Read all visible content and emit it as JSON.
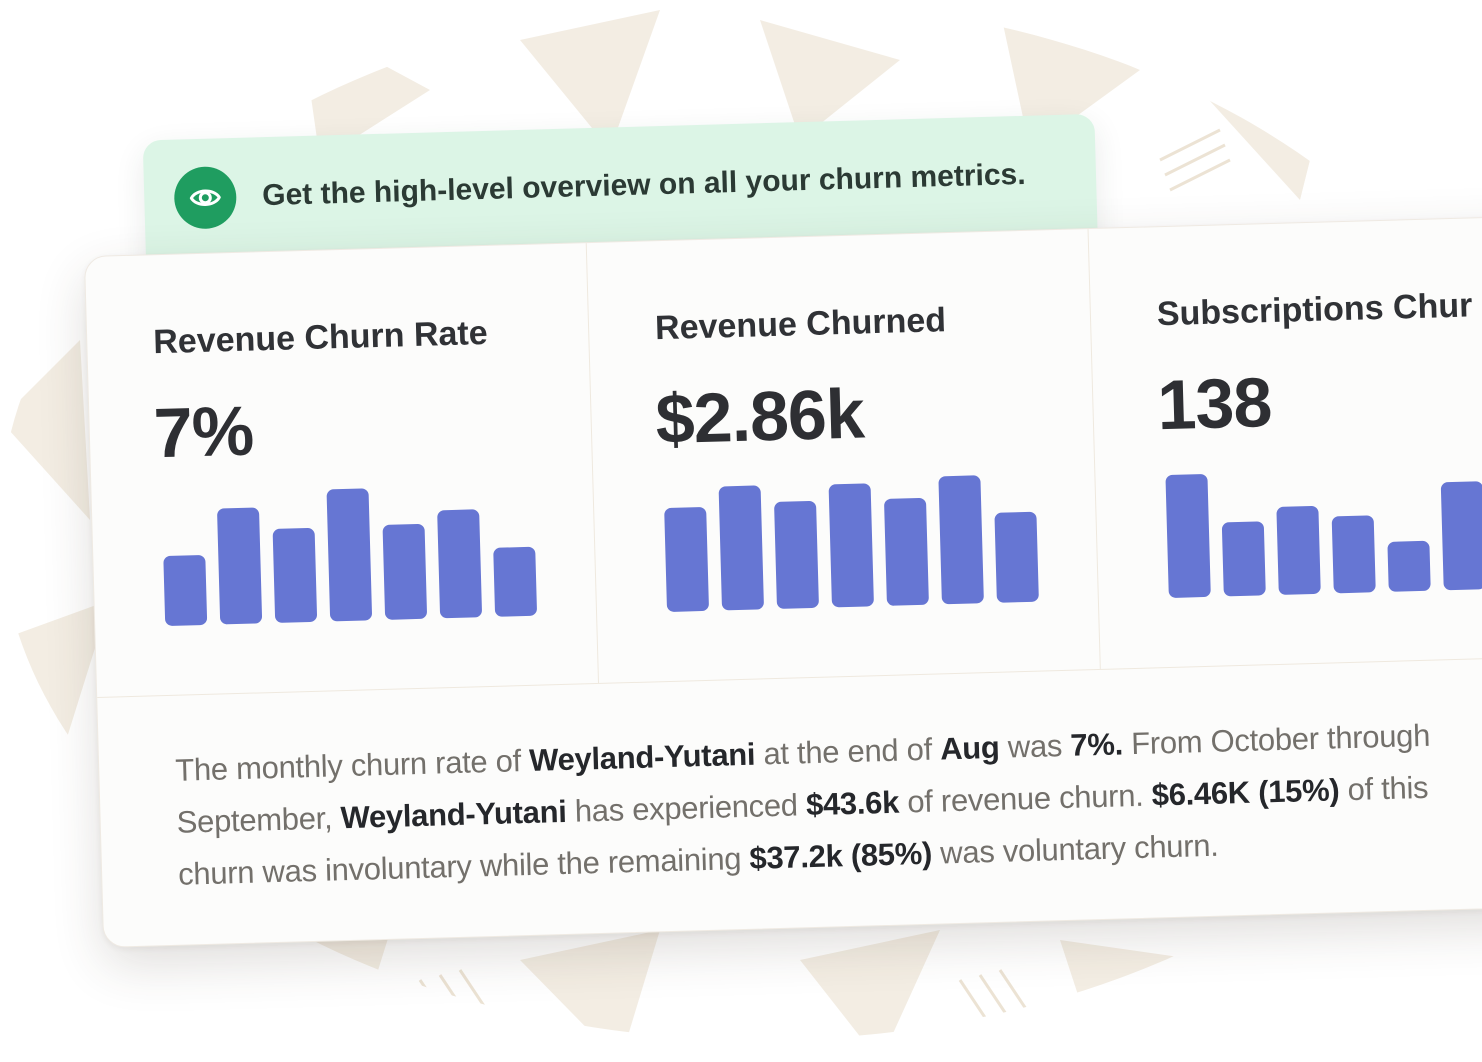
{
  "banner": {
    "icon": "eye-icon",
    "text": "Get the high-level overview on all your churn metrics."
  },
  "metrics": [
    {
      "title": "Revenue Churn Rate",
      "value": "7%",
      "bars": [
        0.53,
        0.88,
        0.71,
        1.0,
        0.72,
        0.82,
        0.52
      ]
    },
    {
      "title": "Revenue Churned",
      "value": "$2.86k",
      "bars": [
        0.79,
        0.94,
        0.81,
        0.93,
        0.81,
        0.97,
        0.68
      ]
    },
    {
      "title": "Subscriptions Chur",
      "value": "138",
      "bars": [
        0.93,
        0.56,
        0.67,
        0.58,
        0.38,
        0.82
      ]
    }
  ],
  "summary": {
    "s1": "The monthly churn rate of ",
    "b1": "Weyland-Yutani",
    "s2": " at the end of ",
    "b2": "Aug",
    "s3": " was ",
    "b3": "7%.",
    "s4": " From October through September, ",
    "b4": "Weyland-Yutani",
    "s5": " has experienced ",
    "b5": "$43.6k",
    "s6": " of revenue churn. ",
    "b6": "$6.46K (15%)",
    "s7": " of this churn was involuntary while the remaining ",
    "b7": "$37.2k (85%)",
    "s8": " was voluntary churn."
  },
  "colors": {
    "bar": "#6676d3",
    "banner_bg": "#dcf5e6",
    "banner_icon": "#1f9d60",
    "pattern": "#efe7da"
  }
}
